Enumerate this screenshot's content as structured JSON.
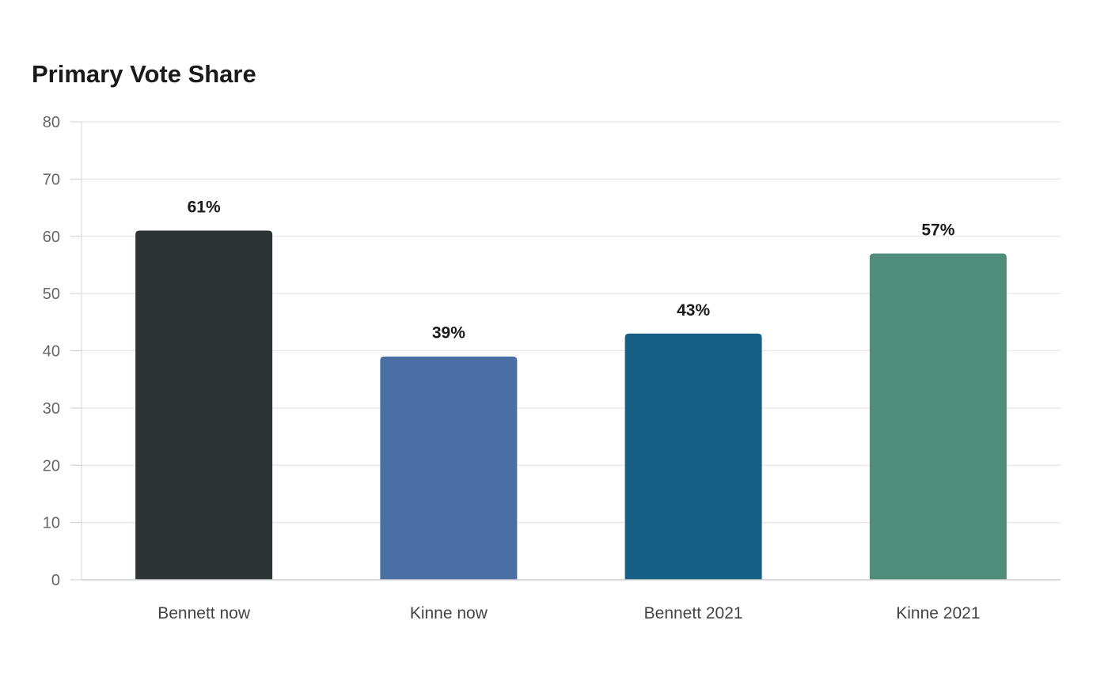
{
  "chart_data": {
    "type": "bar",
    "title": "Primary Vote Share",
    "xlabel": "",
    "ylabel": "",
    "categories": [
      "Bennett now",
      "Kinne now",
      "Bennett 2021",
      "Kinne 2021"
    ],
    "values": [
      61,
      39,
      43,
      57
    ],
    "data_labels": [
      "61%",
      "39%",
      "43%",
      "57%"
    ],
    "colors": [
      "#2d3436",
      "#4a6fa5",
      "#166088",
      "#4f8c7a"
    ],
    "ylim": [
      0,
      80
    ],
    "yticks": [
      0,
      10,
      20,
      30,
      40,
      50,
      60,
      70,
      80
    ],
    "grid": true,
    "legend": "none"
  }
}
